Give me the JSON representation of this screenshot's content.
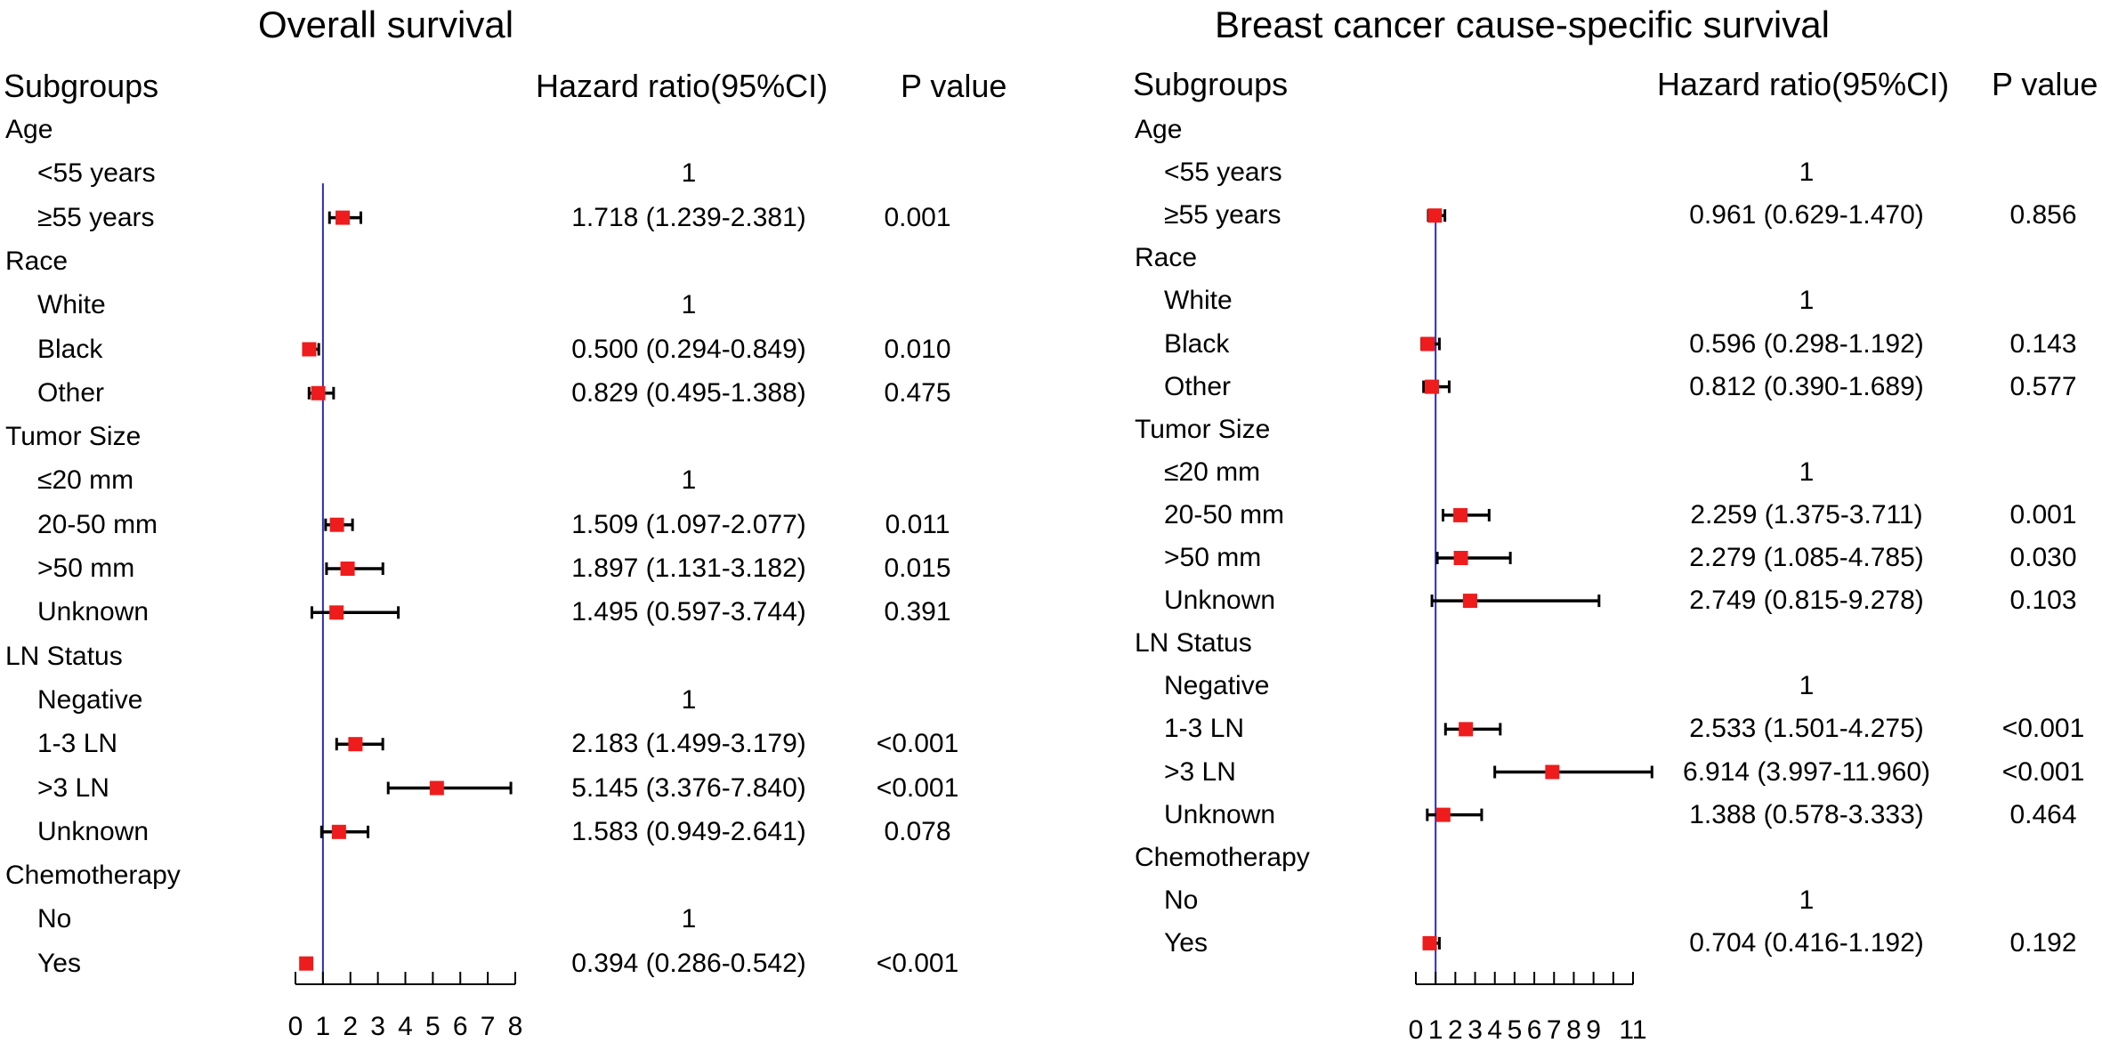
{
  "chart_data": [
    {
      "type": "forest",
      "title": "Overall survival",
      "headers": {
        "subgroups": "Subgroups",
        "hr": "Hazard ratio(95%CI)",
        "p": "P value"
      },
      "reference_line": 1,
      "axis": {
        "ticks": [
          0,
          1,
          2,
          3,
          4,
          5,
          6,
          7,
          8
        ],
        "tick_labels": [
          "0",
          "1",
          "2",
          "3",
          "4",
          "5",
          "6",
          "7",
          "8"
        ],
        "range": [
          0,
          8
        ]
      },
      "rows": [
        {
          "label": "Age",
          "level": 0
        },
        {
          "label": "<55 years",
          "level": 1,
          "hr_text": "1",
          "p_text": ""
        },
        {
          "label": "≥55 years",
          "level": 1,
          "hr": 1.718,
          "lo": 1.239,
          "hi": 2.381,
          "hr_text": "1.718 (1.239-2.381)",
          "p_text": "0.001"
        },
        {
          "label": "Race",
          "level": 0
        },
        {
          "label": "White",
          "level": 1,
          "hr_text": "1",
          "p_text": ""
        },
        {
          "label": "Black",
          "level": 1,
          "hr": 0.5,
          "lo": 0.294,
          "hi": 0.849,
          "hr_text": "0.500 (0.294-0.849)",
          "p_text": "0.010"
        },
        {
          "label": "Other",
          "level": 1,
          "hr": 0.829,
          "lo": 0.495,
          "hi": 1.388,
          "hr_text": "0.829 (0.495-1.388)",
          "p_text": "0.475"
        },
        {
          "label": "Tumor Size",
          "level": 0
        },
        {
          "label": "≤20 mm",
          "level": 1,
          "hr_text": "1",
          "p_text": ""
        },
        {
          "label": "20-50 mm",
          "level": 1,
          "hr": 1.509,
          "lo": 1.097,
          "hi": 2.077,
          "hr_text": "1.509 (1.097-2.077)",
          "p_text": "0.011"
        },
        {
          "label": ">50 mm",
          "level": 1,
          "hr": 1.897,
          "lo": 1.131,
          "hi": 3.182,
          "hr_text": "1.897 (1.131-3.182)",
          "p_text": "0.015"
        },
        {
          "label": "Unknown",
          "level": 1,
          "hr": 1.495,
          "lo": 0.597,
          "hi": 3.744,
          "hr_text": "1.495 (0.597-3.744)",
          "p_text": "0.391"
        },
        {
          "label": "LN Status",
          "level": 0
        },
        {
          "label": "Negative",
          "level": 1,
          "hr_text": "1",
          "p_text": ""
        },
        {
          "label": "1-3 LN",
          "level": 1,
          "hr": 2.183,
          "lo": 1.499,
          "hi": 3.179,
          "hr_text": "2.183 (1.499-3.179)",
          "p_text": "<0.001"
        },
        {
          "label": ">3 LN",
          "level": 1,
          "hr": 5.145,
          "lo": 3.376,
          "hi": 7.84,
          "hr_text": "5.145 (3.376-7.840)",
          "p_text": "<0.001"
        },
        {
          "label": "Unknown",
          "level": 1,
          "hr": 1.583,
          "lo": 0.949,
          "hi": 2.641,
          "hr_text": "1.583 (0.949-2.641)",
          "p_text": "0.078"
        },
        {
          "label": "Chemotherapy",
          "level": 0
        },
        {
          "label": "No",
          "level": 1,
          "hr_text": "1",
          "p_text": ""
        },
        {
          "label": "Yes",
          "level": 1,
          "hr": 0.394,
          "lo": 0.286,
          "hi": 0.542,
          "hr_text": "0.394 (0.286-0.542)",
          "p_text": "<0.001"
        }
      ]
    },
    {
      "type": "forest",
      "title": "Breast cancer cause-specific survival",
      "headers": {
        "subgroups": "Subgroups",
        "hr": "Hazard ratio(95%CI)",
        "p": "P value"
      },
      "reference_line": 1,
      "axis": {
        "ticks": [
          0,
          1,
          2,
          3,
          4,
          5,
          6,
          7,
          8,
          9,
          10,
          11
        ],
        "tick_labels": [
          "0",
          "1",
          "2",
          "3",
          "4",
          "5",
          "6",
          "7",
          "8",
          "9",
          "",
          "11"
        ],
        "range": [
          0,
          11
        ]
      },
      "rows": [
        {
          "label": "Age",
          "level": 0
        },
        {
          "label": "<55 years",
          "level": 1,
          "hr_text": "1",
          "p_text": ""
        },
        {
          "label": "≥55 years",
          "level": 1,
          "hr": 0.961,
          "lo": 0.629,
          "hi": 1.47,
          "hr_text": "0.961 (0.629-1.470)",
          "p_text": "0.856"
        },
        {
          "label": "Race",
          "level": 0
        },
        {
          "label": "White",
          "level": 1,
          "hr_text": "1",
          "p_text": ""
        },
        {
          "label": "Black",
          "level": 1,
          "hr": 0.596,
          "lo": 0.298,
          "hi": 1.192,
          "hr_text": "0.596 (0.298-1.192)",
          "p_text": "0.143"
        },
        {
          "label": "Other",
          "level": 1,
          "hr": 0.812,
          "lo": 0.39,
          "hi": 1.689,
          "hr_text": "0.812 (0.390-1.689)",
          "p_text": "0.577"
        },
        {
          "label": "Tumor Size",
          "level": 0
        },
        {
          "label": "≤20 mm",
          "level": 1,
          "hr_text": "1",
          "p_text": ""
        },
        {
          "label": "20-50 mm",
          "level": 1,
          "hr": 2.259,
          "lo": 1.375,
          "hi": 3.711,
          "hr_text": "2.259 (1.375-3.711)",
          "p_text": "0.001"
        },
        {
          "label": ">50 mm",
          "level": 1,
          "hr": 2.279,
          "lo": 1.085,
          "hi": 4.785,
          "hr_text": "2.279 (1.085-4.785)",
          "p_text": "0.030"
        },
        {
          "label": "Unknown",
          "level": 1,
          "hr": 2.749,
          "lo": 0.815,
          "hi": 9.278,
          "hr_text": "2.749 (0.815-9.278)",
          "p_text": "0.103"
        },
        {
          "label": "LN Status",
          "level": 0
        },
        {
          "label": "Negative",
          "level": 1,
          "hr_text": "1",
          "p_text": ""
        },
        {
          "label": "1-3 LN",
          "level": 1,
          "hr": 2.533,
          "lo": 1.501,
          "hi": 4.275,
          "hr_text": "2.533 (1.501-4.275)",
          "p_text": "<0.001"
        },
        {
          "label": ">3 LN",
          "level": 1,
          "hr": 6.914,
          "lo": 3.997,
          "hi": 11.96,
          "hr_text": "6.914 (3.997-11.960)",
          "p_text": "<0.001"
        },
        {
          "label": "Unknown",
          "level": 1,
          "hr": 1.388,
          "lo": 0.578,
          "hi": 3.333,
          "hr_text": "1.388 (0.578-3.333)",
          "p_text": "0.464"
        },
        {
          "label": "Chemotherapy",
          "level": 0
        },
        {
          "label": "No",
          "level": 1,
          "hr_text": "1",
          "p_text": ""
        },
        {
          "label": "Yes",
          "level": 1,
          "hr": 0.704,
          "lo": 0.416,
          "hi": 1.192,
          "hr_text": "0.704 (0.416-1.192)",
          "p_text": "0.192"
        }
      ]
    }
  ],
  "colors": {
    "marker": "#ee1c1c",
    "ref_line": "#2b2bb0",
    "ink": "#000000"
  }
}
